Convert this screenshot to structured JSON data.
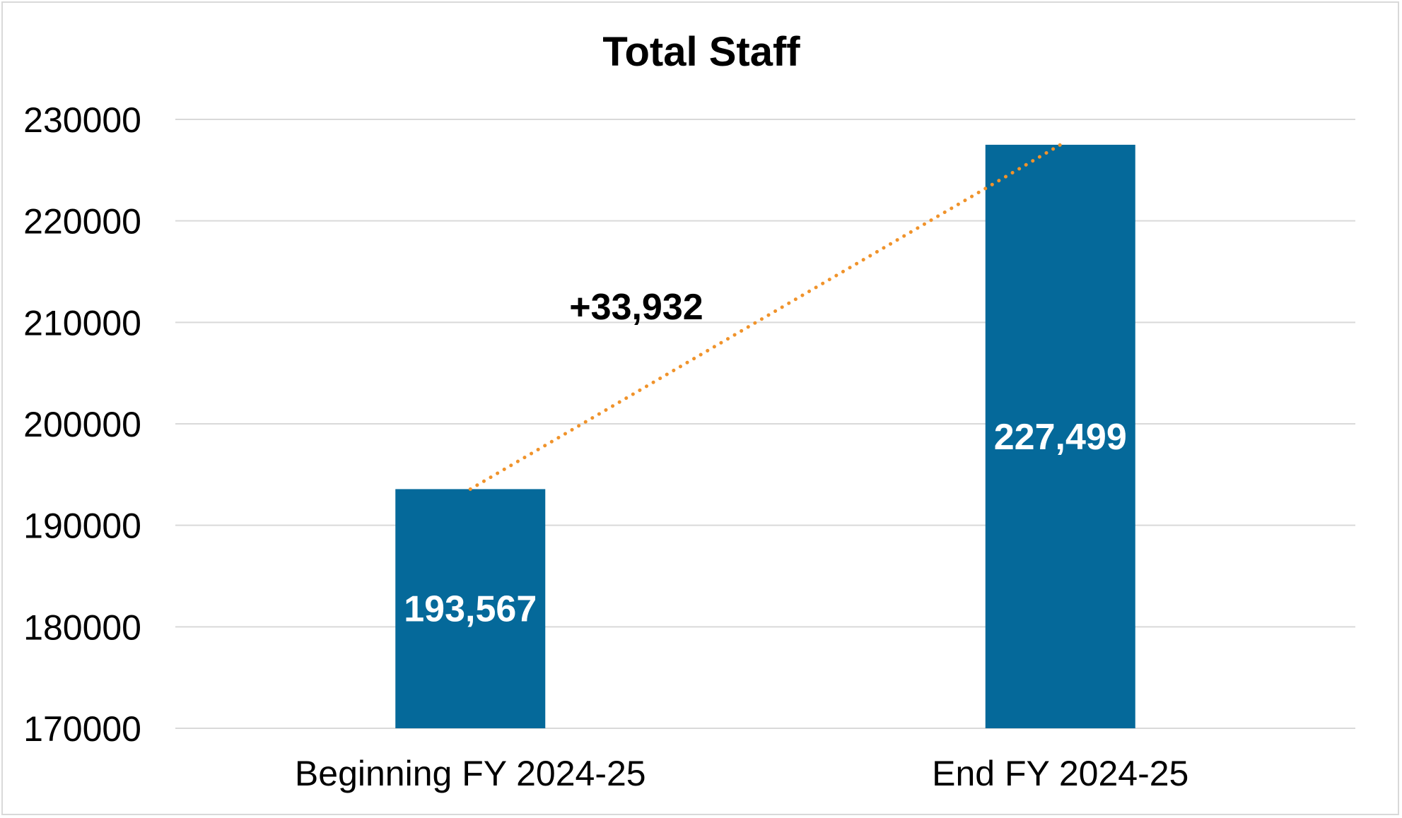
{
  "chart_data": {
    "type": "bar",
    "title": "Total Staff",
    "xlabel": "",
    "ylabel": "",
    "categories": [
      "Beginning FY 2024-25",
      "End FY 2024-25"
    ],
    "values": [
      193567,
      227499
    ],
    "data_labels": [
      "193,567",
      "227,499"
    ],
    "ylim": [
      170000,
      230000
    ],
    "yticks": [
      170000,
      180000,
      190000,
      200000,
      210000,
      220000,
      230000
    ],
    "ytick_labels": [
      "170000",
      "180000",
      "190000",
      "200000",
      "210000",
      "220000",
      "230000"
    ],
    "grid": true,
    "legend": "none",
    "bar_color": "#05699a",
    "gridline_color": "#d9d9d9",
    "annotation": {
      "text": "+33,932",
      "line_style": "dotted",
      "line_color": "#f0932b",
      "from_category": "Beginning FY 2024-25",
      "to_category": "End FY 2024-25"
    }
  }
}
